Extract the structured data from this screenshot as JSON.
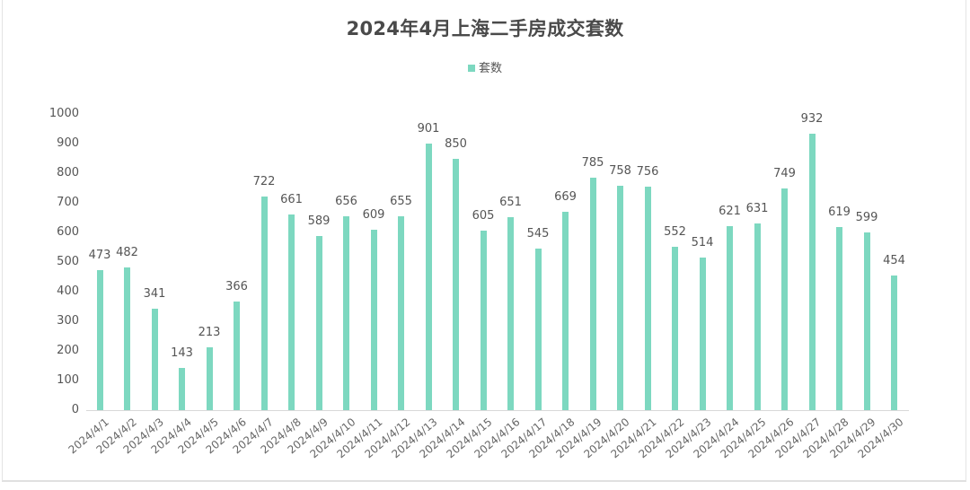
{
  "title": "2024年4月上海二手房成交套数",
  "legend": {
    "label": "套数",
    "color": "#7dd8c0"
  },
  "colors": {
    "bar": "#7dd8c0",
    "text": "#555555",
    "title": "#4a4a4a",
    "axis": "#d9d9d9"
  },
  "chart_data": {
    "type": "bar",
    "title": "2024年4月上海二手房成交套数",
    "xlabel": "",
    "ylabel": "",
    "ylim": [
      0,
      1000
    ],
    "yticks": [
      0,
      100,
      200,
      300,
      400,
      500,
      600,
      700,
      800,
      900,
      1000
    ],
    "grid": false,
    "legend_position": "top",
    "categories": [
      "2024/4/1",
      "2024/4/2",
      "2024/4/3",
      "2024/4/4",
      "2024/4/5",
      "2024/4/6",
      "2024/4/7",
      "2024/4/8",
      "2024/4/9",
      "2024/4/10",
      "2024/4/11",
      "2024/4/12",
      "2024/4/13",
      "2024/4/14",
      "2024/4/15",
      "2024/4/16",
      "2024/4/17",
      "2024/4/18",
      "2024/4/19",
      "2024/4/20",
      "2024/4/21",
      "2024/4/22",
      "2024/4/23",
      "2024/4/24",
      "2024/4/25",
      "2024/4/26",
      "2024/4/27",
      "2024/4/28",
      "2024/4/29",
      "2024/4/30"
    ],
    "series": [
      {
        "name": "套数",
        "values": [
          473,
          482,
          341,
          143,
          213,
          366,
          722,
          661,
          589,
          656,
          609,
          655,
          901,
          850,
          605,
          651,
          545,
          669,
          785,
          758,
          756,
          552,
          514,
          621,
          631,
          749,
          932,
          619,
          599,
          454
        ]
      }
    ]
  }
}
